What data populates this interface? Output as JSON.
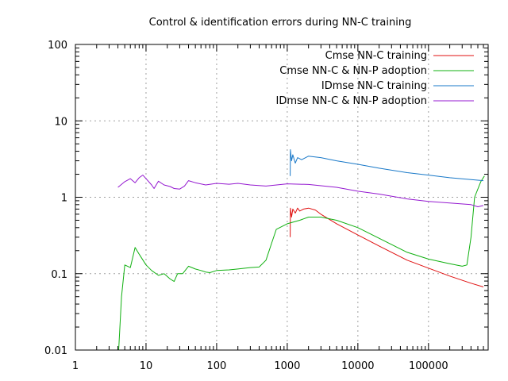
{
  "chart_data": {
    "type": "line",
    "title": "Control & identification errors during NN-C training",
    "xlabel": "",
    "ylabel": "",
    "x_scale": "log",
    "y_scale": "log",
    "xlim": [
      1,
      700000
    ],
    "ylim": [
      0.01,
      100
    ],
    "grid": true,
    "legend_position": "top-right",
    "x_ticks": [
      {
        "value": 1,
        "label": "1"
      },
      {
        "value": 10,
        "label": "10"
      },
      {
        "value": 100,
        "label": "100"
      },
      {
        "value": 1000,
        "label": "1000"
      },
      {
        "value": 10000,
        "label": "10000"
      },
      {
        "value": 100000,
        "label": "100000"
      }
    ],
    "y_ticks": [
      {
        "value": 0.01,
        "label": "0.01"
      },
      {
        "value": 0.1,
        "label": "0.1"
      },
      {
        "value": 1,
        "label": "1"
      },
      {
        "value": 10,
        "label": "10"
      },
      {
        "value": 100,
        "label": "100"
      }
    ],
    "series": [
      {
        "name": "Cmse NN-C training",
        "color": "#e01010",
        "points": [
          [
            1100,
            0.3
          ],
          [
            1110,
            0.72
          ],
          [
            1150,
            0.55
          ],
          [
            1200,
            0.7
          ],
          [
            1300,
            0.62
          ],
          [
            1400,
            0.72
          ],
          [
            1500,
            0.66
          ],
          [
            1700,
            0.7
          ],
          [
            2000,
            0.72
          ],
          [
            2500,
            0.68
          ],
          [
            3000,
            0.6
          ],
          [
            5000,
            0.45
          ],
          [
            10000,
            0.32
          ],
          [
            20000,
            0.23
          ],
          [
            50000,
            0.15
          ],
          [
            100000,
            0.118
          ],
          [
            200000,
            0.093
          ],
          [
            400000,
            0.075
          ],
          [
            600000,
            0.067
          ]
        ]
      },
      {
        "name": "Cmse NN-C & NN-P adoption",
        "color": "#10b010",
        "points": [
          [
            4.1,
            0.01
          ],
          [
            4.5,
            0.05
          ],
          [
            5,
            0.13
          ],
          [
            6,
            0.12
          ],
          [
            7,
            0.22
          ],
          [
            8,
            0.18
          ],
          [
            10,
            0.13
          ],
          [
            12,
            0.11
          ],
          [
            15,
            0.095
          ],
          [
            18,
            0.1
          ],
          [
            22,
            0.085
          ],
          [
            25,
            0.079
          ],
          [
            28,
            0.1
          ],
          [
            33,
            0.1
          ],
          [
            40,
            0.125
          ],
          [
            50,
            0.115
          ],
          [
            60,
            0.11
          ],
          [
            70,
            0.105
          ],
          [
            80,
            0.103
          ],
          [
            100,
            0.11
          ],
          [
            150,
            0.112
          ],
          [
            200,
            0.115
          ],
          [
            300,
            0.12
          ],
          [
            400,
            0.122
          ],
          [
            500,
            0.15
          ],
          [
            600,
            0.25
          ],
          [
            700,
            0.38
          ],
          [
            1000,
            0.45
          ],
          [
            1500,
            0.5
          ],
          [
            2000,
            0.55
          ],
          [
            3000,
            0.55
          ],
          [
            5000,
            0.5
          ],
          [
            10000,
            0.4
          ],
          [
            20000,
            0.29
          ],
          [
            50000,
            0.19
          ],
          [
            100000,
            0.155
          ],
          [
            200000,
            0.135
          ],
          [
            300000,
            0.125
          ],
          [
            350000,
            0.13
          ],
          [
            400000,
            0.3
          ],
          [
            450000,
            1.0
          ],
          [
            550000,
            1.6
          ],
          [
            620000,
            1.9
          ]
        ]
      },
      {
        "name": "IDmse NN-C training",
        "color": "#1878c8",
        "points": [
          [
            1100,
            1.9
          ],
          [
            1110,
            4.2
          ],
          [
            1150,
            3.0
          ],
          [
            1200,
            3.6
          ],
          [
            1300,
            2.8
          ],
          [
            1400,
            3.3
          ],
          [
            1600,
            3.1
          ],
          [
            2000,
            3.45
          ],
          [
            3000,
            3.3
          ],
          [
            5000,
            3.0
          ],
          [
            10000,
            2.7
          ],
          [
            20000,
            2.4
          ],
          [
            50000,
            2.1
          ],
          [
            100000,
            1.95
          ],
          [
            200000,
            1.8
          ],
          [
            400000,
            1.7
          ],
          [
            600000,
            1.65
          ]
        ]
      },
      {
        "name": "IDmse NN-C & NN-P adoption",
        "color": "#9418d0",
        "points": [
          [
            4,
            1.35
          ],
          [
            5,
            1.6
          ],
          [
            6,
            1.75
          ],
          [
            7,
            1.55
          ],
          [
            8,
            1.8
          ],
          [
            9,
            1.95
          ],
          [
            10,
            1.75
          ],
          [
            12,
            1.45
          ],
          [
            13,
            1.3
          ],
          [
            15,
            1.62
          ],
          [
            18,
            1.45
          ],
          [
            22,
            1.38
          ],
          [
            25,
            1.3
          ],
          [
            30,
            1.28
          ],
          [
            35,
            1.4
          ],
          [
            40,
            1.65
          ],
          [
            50,
            1.55
          ],
          [
            70,
            1.45
          ],
          [
            100,
            1.52
          ],
          [
            150,
            1.48
          ],
          [
            200,
            1.52
          ],
          [
            300,
            1.45
          ],
          [
            500,
            1.4
          ],
          [
            1000,
            1.5
          ],
          [
            2000,
            1.47
          ],
          [
            5000,
            1.35
          ],
          [
            10000,
            1.2
          ],
          [
            20000,
            1.1
          ],
          [
            50000,
            0.95
          ],
          [
            100000,
            0.88
          ],
          [
            200000,
            0.84
          ],
          [
            400000,
            0.8
          ],
          [
            500000,
            0.75
          ],
          [
            600000,
            0.78
          ]
        ]
      }
    ]
  }
}
